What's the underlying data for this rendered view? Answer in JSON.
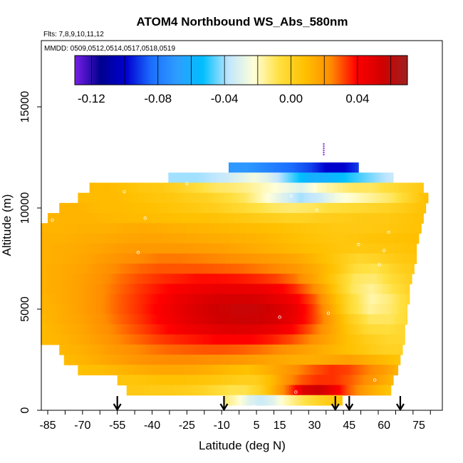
{
  "chart_data": {
    "type": "heatmap",
    "title": "ATOM4 Northbound WS_Abs_580nm",
    "flights_note": "Flts: 7,8,9,10,11,12",
    "dates_note": "MMDD: 0509,0512,0514,0517,0518,0519",
    "xlabel": "Latitude (deg N)",
    "ylabel": "Altitude (m)",
    "xlim": [
      -88,
      82
    ],
    "ylim": [
      0,
      18000
    ],
    "x_ticks": [
      -85,
      -70,
      -55,
      -40,
      -25,
      -10,
      5,
      15,
      30,
      45,
      60,
      75
    ],
    "y_ticks": [
      0,
      5000,
      10000,
      15000
    ],
    "colorbar": {
      "vmin": -0.13,
      "vmax": 0.07,
      "ticks": [
        "-0.12",
        "-0.08",
        "-0.04",
        "0.00",
        "0.04"
      ],
      "tick_values": [
        -0.12,
        -0.08,
        -0.04,
        0.0,
        0.04
      ],
      "colors": [
        "#7a1fe8",
        "#00008f",
        "#0000d0",
        "#1c6fff",
        "#2f9dff",
        "#00bfff",
        "#bfe6ff",
        "#ffffd8",
        "#ffe040",
        "#ffc000",
        "#ff8c00",
        "#ff0000",
        "#d00000",
        "#a02020"
      ]
    },
    "profile_latitudes": [
      -55,
      -9,
      39,
      45,
      67
    ],
    "rows": [
      {
        "alt": 12000,
        "lat0": -7,
        "lat1": 49,
        "v": [
          -0.07,
          -0.07,
          -0.075,
          -0.08,
          -0.085,
          -0.09,
          -0.1,
          -0.1,
          -0.09
        ]
      },
      {
        "alt": 11500,
        "lat0": -33,
        "lat1": 64,
        "v": [
          -0.04,
          -0.04,
          -0.04,
          -0.038,
          -0.035,
          -0.03,
          -0.025,
          -0.03,
          -0.04,
          -0.05,
          -0.06,
          -0.06,
          -0.055,
          -0.05,
          -0.045,
          -0.04,
          -0.035
        ]
      },
      {
        "alt": 11000,
        "lat0": -67,
        "lat1": 77,
        "v": [
          0.01,
          0.01,
          0.008,
          0.005,
          0.004,
          0.0,
          -0.005,
          -0.01,
          -0.012,
          -0.015,
          -0.02,
          -0.025,
          -0.03,
          -0.02,
          -0.015,
          -0.01,
          -0.01,
          -0.005,
          0.0,
          0.005
        ]
      },
      {
        "alt": 10500,
        "lat0": -72,
        "lat1": 79,
        "v": [
          0.01,
          0.01,
          0.01,
          0.008,
          0.006,
          0.005,
          0.002,
          0.0,
          -0.005,
          -0.01,
          -0.02,
          -0.03,
          -0.04,
          -0.035,
          -0.025,
          -0.02,
          -0.015,
          -0.01,
          0.0,
          0.01
        ]
      },
      {
        "alt": 10000,
        "lat0": -80,
        "lat1": 78,
        "v": [
          0.012,
          0.012,
          0.01,
          0.01,
          0.009,
          0.008,
          0.006,
          0.004,
          0.002,
          -0.002,
          -0.006,
          -0.01,
          -0.012,
          -0.01,
          -0.006,
          -0.004,
          -0.002,
          0.0,
          0.004,
          0.008
        ]
      },
      {
        "alt": 9500,
        "lat0": -85,
        "lat1": 77,
        "v": [
          0.012,
          0.012,
          0.012,
          0.011,
          0.01,
          0.01,
          0.009,
          0.008,
          0.008,
          0.006,
          0.004,
          0.002,
          0.0,
          0.0,
          0.002,
          0.003,
          0.004,
          0.004,
          0.006,
          0.008
        ]
      },
      {
        "alt": 9000,
        "lat0": -88,
        "lat1": 76,
        "v": [
          0.012,
          0.012,
          0.013,
          0.013,
          0.014,
          0.015,
          0.014,
          0.013,
          0.012,
          0.011,
          0.01,
          0.009,
          0.008,
          0.006,
          0.005,
          0.004,
          0.004,
          0.005,
          0.006,
          0.008
        ]
      },
      {
        "alt": 8500,
        "lat0": -88,
        "lat1": 75,
        "v": [
          0.013,
          0.013,
          0.014,
          0.015,
          0.016,
          0.017,
          0.017,
          0.016,
          0.015,
          0.014,
          0.013,
          0.012,
          0.01,
          0.008,
          0.006,
          0.005,
          0.006,
          0.007,
          0.008,
          0.009
        ]
      },
      {
        "alt": 8000,
        "lat0": -88,
        "lat1": 74,
        "v": [
          0.013,
          0.014,
          0.015,
          0.017,
          0.019,
          0.02,
          0.02,
          0.02,
          0.019,
          0.018,
          0.016,
          0.014,
          0.012,
          0.01,
          0.008,
          0.006,
          0.004,
          0.005,
          0.006,
          0.008
        ]
      },
      {
        "alt": 7500,
        "lat0": -88,
        "lat1": 74,
        "v": [
          0.013,
          0.014,
          0.016,
          0.019,
          0.022,
          0.024,
          0.026,
          0.026,
          0.025,
          0.024,
          0.022,
          0.02,
          0.018,
          0.015,
          0.01,
          0.004,
          -0.002,
          0.0,
          0.004,
          0.006
        ]
      },
      {
        "alt": 7000,
        "lat0": -88,
        "lat1": 73,
        "v": [
          0.013,
          0.015,
          0.017,
          0.021,
          0.025,
          0.028,
          0.03,
          0.03,
          0.03,
          0.029,
          0.028,
          0.026,
          0.024,
          0.02,
          0.014,
          0.006,
          -0.006,
          -0.008,
          0.0,
          0.004
        ]
      },
      {
        "alt": 6500,
        "lat0": -88,
        "lat1": 72,
        "v": [
          0.013,
          0.015,
          0.018,
          0.022,
          0.027,
          0.031,
          0.034,
          0.036,
          0.038,
          0.038,
          0.037,
          0.035,
          0.032,
          0.026,
          0.016,
          0.004,
          -0.01,
          -0.012,
          -0.004,
          0.002
        ]
      },
      {
        "alt": 6000,
        "lat0": -88,
        "lat1": 71,
        "v": [
          0.013,
          0.015,
          0.018,
          0.023,
          0.028,
          0.033,
          0.037,
          0.041,
          0.044,
          0.046,
          0.046,
          0.045,
          0.042,
          0.035,
          0.024,
          0.008,
          -0.01,
          -0.016,
          -0.008,
          0.0
        ]
      },
      {
        "alt": 5500,
        "lat0": -88,
        "lat1": 71,
        "v": [
          0.012,
          0.015,
          0.018,
          0.023,
          0.029,
          0.034,
          0.039,
          0.045,
          0.049,
          0.052,
          0.053,
          0.052,
          0.048,
          0.042,
          0.03,
          0.012,
          -0.006,
          -0.018,
          -0.012,
          -0.002
        ]
      },
      {
        "alt": 5000,
        "lat0": -88,
        "lat1": 70,
        "v": [
          0.012,
          0.014,
          0.018,
          0.023,
          0.029,
          0.034,
          0.04,
          0.046,
          0.051,
          0.055,
          0.057,
          0.057,
          0.054,
          0.047,
          0.034,
          0.016,
          -0.004,
          -0.016,
          -0.012,
          -0.004
        ]
      },
      {
        "alt": 4500,
        "lat0": -88,
        "lat1": 70,
        "v": [
          0.011,
          0.014,
          0.017,
          0.022,
          0.028,
          0.033,
          0.039,
          0.045,
          0.05,
          0.054,
          0.056,
          0.056,
          0.053,
          0.046,
          0.034,
          0.018,
          0.002,
          -0.01,
          -0.01,
          -0.004
        ]
      },
      {
        "alt": 4000,
        "lat0": -88,
        "lat1": 69,
        "v": [
          0.01,
          0.013,
          0.016,
          0.021,
          0.026,
          0.031,
          0.036,
          0.041,
          0.045,
          0.048,
          0.05,
          0.049,
          0.046,
          0.04,
          0.03,
          0.018,
          0.006,
          -0.004,
          -0.006,
          -0.002
        ]
      },
      {
        "alt": 3500,
        "lat0": -88,
        "lat1": 69,
        "v": [
          0.01,
          0.012,
          0.015,
          0.019,
          0.024,
          0.028,
          0.032,
          0.035,
          0.037,
          0.039,
          0.04,
          0.039,
          0.036,
          0.031,
          0.024,
          0.016,
          0.008,
          0.002,
          -0.002,
          -0.002
        ]
      },
      {
        "alt": 3000,
        "lat0": -80,
        "lat1": 68,
        "v": [
          0.011,
          0.013,
          0.016,
          0.02,
          0.023,
          0.026,
          0.028,
          0.029,
          0.03,
          0.03,
          0.029,
          0.027,
          0.024,
          0.02,
          0.016,
          0.012,
          0.008,
          0.004,
          0.0,
          0.0
        ]
      },
      {
        "alt": 2500,
        "lat0": -78,
        "lat1": 67,
        "v": [
          0.01,
          0.012,
          0.015,
          0.018,
          0.021,
          0.023,
          0.024,
          0.024,
          0.023,
          0.022,
          0.02,
          0.018,
          0.016,
          0.014,
          0.014,
          0.016,
          0.018,
          0.014,
          0.01,
          0.006
        ]
      },
      {
        "alt": 2000,
        "lat0": -72,
        "lat1": 66,
        "v": [
          0.008,
          0.009,
          0.011,
          0.013,
          0.015,
          0.016,
          0.016,
          0.015,
          0.013,
          0.01,
          0.008,
          0.012,
          0.018,
          0.024,
          0.03,
          0.034,
          0.032,
          0.026,
          0.02,
          0.012
        ]
      },
      {
        "alt": 1500,
        "lat0": -55,
        "lat1": 64,
        "v": [
          0.006,
          0.006,
          0.007,
          0.008,
          0.008,
          0.007,
          0.006,
          0.004,
          0.002,
          0.002,
          0.01,
          0.022,
          0.03,
          0.034,
          0.034,
          0.03,
          0.024,
          0.018,
          0.01
        ]
      },
      {
        "alt": 1000,
        "lat0": -51,
        "lat1": 63,
        "v": [
          0.004,
          0.004,
          0.003,
          0.003,
          0.002,
          0.0,
          -0.004,
          -0.008,
          -0.008,
          0.0,
          0.014,
          0.03,
          0.05,
          0.055,
          0.045,
          0.03,
          0.02,
          0.012,
          0.006
        ]
      },
      {
        "alt": 500,
        "lat0": -9,
        "lat1": 42,
        "v": [
          -0.012,
          -0.02,
          -0.03,
          -0.035,
          -0.03,
          -0.02,
          -0.012,
          -0.006,
          0.0,
          0.004,
          0.006
        ]
      }
    ],
    "markers": [
      {
        "lat": -70,
        "alt": 11200
      },
      {
        "lat": -83,
        "alt": 9400
      },
      {
        "lat": -43,
        "alt": 9500
      },
      {
        "lat": -46,
        "alt": 7800
      },
      {
        "lat": -52,
        "alt": 10800
      },
      {
        "lat": -25,
        "alt": 11200
      },
      {
        "lat": 20,
        "alt": 10600
      },
      {
        "lat": 31,
        "alt": 9900
      },
      {
        "lat": 62,
        "alt": 8800
      },
      {
        "lat": 49,
        "alt": 8200
      },
      {
        "lat": 60,
        "alt": 7900
      },
      {
        "lat": 58,
        "alt": 7200
      },
      {
        "lat": 15,
        "alt": 4600
      },
      {
        "lat": 36,
        "alt": 4800
      },
      {
        "lat": 22,
        "alt": 900
      },
      {
        "lat": 56,
        "alt": 1500
      },
      {
        "lat": 4,
        "alt": 200
      }
    ]
  }
}
